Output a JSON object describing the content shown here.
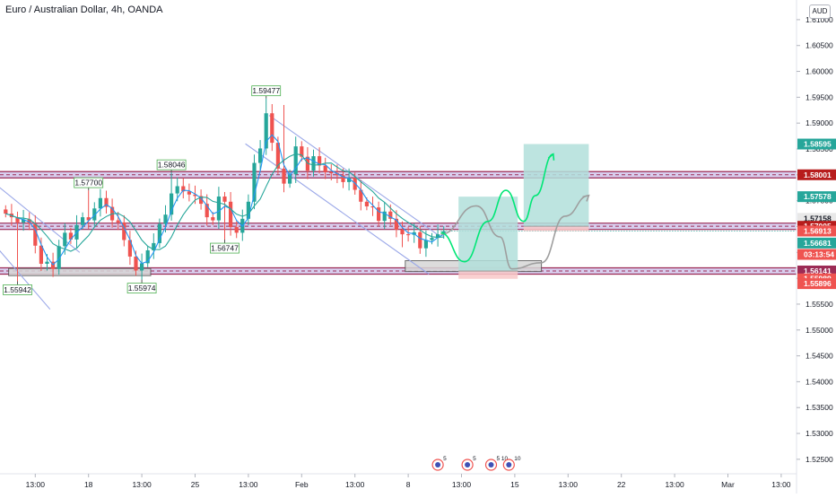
{
  "header": {
    "title": "Euro / Australian Dollar, 4h, OANDA",
    "currency": "AUD"
  },
  "colors": {
    "up": "#26a69a",
    "down": "#ef5350",
    "level_line": "#9c2b55",
    "level_band": "#d4c9ec",
    "channel": "#9ba8e8",
    "ma_fast": "#2196f3",
    "ma_slow": "#26a69a",
    "target_zone": "#b2dfdb",
    "stop_zone": "#f8c8c8",
    "projection_green": "#00e676",
    "projection_grey": "#9e9e9e"
  },
  "chart_data": {
    "type": "candlestick",
    "symbol": "Euro / Australian Dollar",
    "timeframe": "4h",
    "broker": "OANDA",
    "ylim": [
      1.5222,
      1.6138
    ],
    "y_ticks": [
      1.525,
      1.53,
      1.535,
      1.54,
      1.545,
      1.55,
      1.555,
      1.56,
      1.565,
      1.57,
      1.575,
      1.58,
      1.585,
      1.59,
      1.595,
      1.6,
      1.605,
      1.61
    ],
    "y_tick_labels": [
      "1.52500",
      "1.53000",
      "1.53500",
      "1.54000",
      "1.54500",
      "1.55000",
      "1.55500",
      "1.56000",
      "1.56500",
      "1.57000",
      "1.57500",
      "1.58000",
      "1.58500",
      "1.59000",
      "1.59500",
      "1.60000",
      "1.60500",
      "1.61000"
    ],
    "x_labels": [
      {
        "bar": 5,
        "label": "13:00"
      },
      {
        "bar": 14,
        "label": "18"
      },
      {
        "bar": 23,
        "label": "13:00"
      },
      {
        "bar": 32,
        "label": "25"
      },
      {
        "bar": 41,
        "label": "13:00"
      },
      {
        "bar": 50,
        "label": "Feb"
      },
      {
        "bar": 59,
        "label": "13:00"
      },
      {
        "bar": 68,
        "label": "8"
      },
      {
        "bar": 77,
        "label": "13:00"
      },
      {
        "bar": 86,
        "label": "15"
      },
      {
        "bar": 95,
        "label": "13:00"
      },
      {
        "bar": 104,
        "label": "22"
      },
      {
        "bar": 113,
        "label": "13:00"
      },
      {
        "bar": 122,
        "label": "Mar"
      },
      {
        "bar": 131,
        "label": "13:00"
      }
    ],
    "bar_count": 138,
    "closes": [
      1.5725,
      1.5718,
      1.5708,
      1.5714,
      1.5705,
      1.5663,
      1.5628,
      1.5632,
      1.5618,
      1.5662,
      1.5688,
      1.5675,
      1.5703,
      1.5718,
      1.5712,
      1.5735,
      1.5755,
      1.5738,
      1.5712,
      1.5708,
      1.5674,
      1.5642,
      1.5615,
      1.5629,
      1.5654,
      1.5668,
      1.5705,
      1.5723,
      1.5764,
      1.5778,
      1.5768,
      1.5762,
      1.5759,
      1.5744,
      1.5718,
      1.5712,
      1.5758,
      1.5748,
      1.5699,
      1.5688,
      1.5715,
      1.5748,
      1.5823,
      1.5851,
      1.5919,
      1.5862,
      1.5812,
      1.5783,
      1.5801,
      1.5855,
      1.5835,
      1.5808,
      1.5836,
      1.5818,
      1.5805,
      1.5803,
      1.5799,
      1.5786,
      1.5794,
      1.5771,
      1.5748,
      1.5739,
      1.5737,
      1.5711,
      1.5729,
      1.5715,
      1.5694,
      1.5685,
      1.5684,
      1.5689,
      1.5658,
      1.5674,
      1.5678,
      1.5685,
      1.5691
    ],
    "last_close": 1.56913,
    "annotations": [
      {
        "bar": 2,
        "price": 1.55942,
        "label": "1.55942",
        "position": "below"
      },
      {
        "bar": 14,
        "price": 1.577,
        "label": "1.57700",
        "position": "above"
      },
      {
        "bar": 23,
        "price": 1.55974,
        "label": "1.55974",
        "position": "below"
      },
      {
        "bar": 28,
        "price": 1.58046,
        "label": "1.58046",
        "position": "above"
      },
      {
        "bar": 37,
        "price": 1.56747,
        "label": "1.56747",
        "position": "below"
      },
      {
        "bar": 44,
        "price": 1.59477,
        "label": "1.59477",
        "position": "above"
      }
    ],
    "levels": [
      {
        "price": 1.58001,
        "label": "1.58001",
        "badge": "#b71c1c"
      },
      {
        "price": 1.57005,
        "label": "1.57005",
        "badge": "#b71c1c"
      },
      {
        "price": 1.56141,
        "label": "1.56141",
        "badge": "#9c2b55"
      }
    ],
    "price_badges": [
      {
        "price": 1.58595,
        "label": "1.58595",
        "bg": "#26a69a",
        "fg": "#ffffff"
      },
      {
        "price": 1.58001,
        "label": "1.58001",
        "bg": "#b71c1c",
        "fg": "#ffffff"
      },
      {
        "price": 1.57578,
        "label": "1.57578",
        "bg": "#26a69a",
        "fg": "#ffffff"
      },
      {
        "price": 1.57158,
        "label": "1.57158",
        "bg": "#e8e8e8",
        "fg": "#131722"
      },
      {
        "price": 1.57005,
        "label": "1.57005",
        "bg": "#b71c1c",
        "fg": "#ffffff"
      },
      {
        "price": 1.56913,
        "label": "1.56913",
        "bg": "#ef5350",
        "fg": "#ffffff"
      },
      {
        "price": 1.56681,
        "label": "1.56681",
        "bg": "#26a69a",
        "fg": "#ffffff"
      },
      {
        "price": 1.56461,
        "label": "03:13:54",
        "bg": "#ef5350",
        "fg": "#ffffff"
      },
      {
        "price": 1.56141,
        "label": "1.56141",
        "bg": "#9c2b55",
        "fg": "#ffffff"
      },
      {
        "price": 1.55989,
        "label": "1.55989",
        "bg": "#ef5350",
        "fg": "#ffffff"
      },
      {
        "price": 1.55896,
        "label": "1.55896",
        "bg": "#ef5350",
        "fg": "#ffffff"
      }
    ],
    "support_boxes": [
      {
        "bar_start": 1,
        "bar_end": 25,
        "price_top": 1.5619,
        "price_bottom": 1.5605
      },
      {
        "bar_start": 68,
        "bar_end": 91,
        "price_top": 1.5634,
        "price_bottom": 1.5613
      }
    ],
    "positions": [
      {
        "bar_start": 77,
        "bar_end": 87,
        "entry": 1.56141,
        "target": 1.57578,
        "stop": 1.55989
      },
      {
        "bar_start": 88,
        "bar_end": 99,
        "entry": 1.57005,
        "target": 1.58595,
        "stop": 1.56913
      }
    ],
    "events": [
      {
        "bar": 73,
        "count": "5"
      },
      {
        "bar": 78,
        "count": "5"
      },
      {
        "bar": 82,
        "count": "5 10"
      },
      {
        "bar": 85,
        "count": "10"
      }
    ]
  }
}
